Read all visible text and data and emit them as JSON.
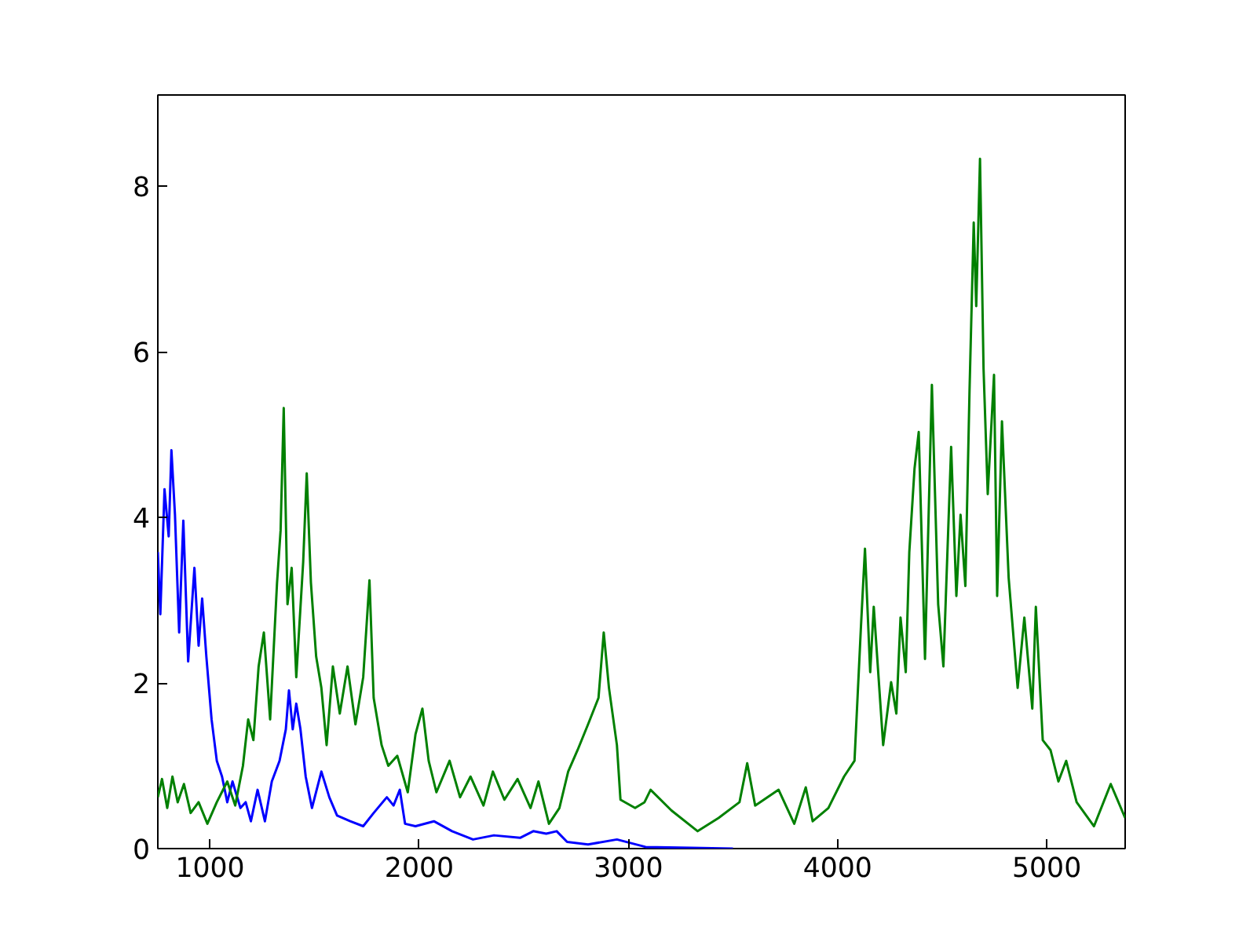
{
  "chart_data": {
    "type": "line",
    "xlim": [
      750,
      5375
    ],
    "ylim": [
      0,
      9.1
    ],
    "xticks": [
      1000,
      2000,
      3000,
      4000,
      5000
    ],
    "yticks": [
      0,
      2,
      4,
      6,
      8
    ],
    "grid": false,
    "line_style": "solid",
    "series": [
      {
        "color": "#0000ff",
        "x": [
          750,
          762,
          782,
          802,
          815,
          832,
          852,
          872,
          895,
          925,
          945,
          962,
          982,
          1007,
          1032,
          1057,
          1082,
          1107,
          1145,
          1170,
          1195,
          1227,
          1262,
          1295,
          1332,
          1362,
          1377,
          1395,
          1412,
          1432,
          1457,
          1487,
          1532,
          1570,
          1607,
          1670,
          1732,
          1782,
          1845,
          1877,
          1907,
          1932,
          1982,
          2070,
          2157,
          2257,
          2357,
          2482,
          2545,
          2607,
          2657,
          2707,
          2807,
          2945,
          3082,
          3300,
          3500
        ],
        "values": [
          3.58,
          2.83,
          4.34,
          3.77,
          4.81,
          4.03,
          2.61,
          3.96,
          2.26,
          3.39,
          2.45,
          3.02,
          2.32,
          1.56,
          1.06,
          0.87,
          0.56,
          0.81,
          0.49,
          0.56,
          0.33,
          0.71,
          0.33,
          0.81,
          1.06,
          1.44,
          1.91,
          1.44,
          1.75,
          1.44,
          0.87,
          0.49,
          0.93,
          0.62,
          0.4,
          0.33,
          0.27,
          0.43,
          0.62,
          0.52,
          0.71,
          0.3,
          0.27,
          0.33,
          0.21,
          0.11,
          0.16,
          0.13,
          0.21,
          0.18,
          0.21,
          0.08,
          0.05,
          0.11,
          0.02,
          0.01,
          0.0
        ]
      },
      {
        "color": "#008000",
        "x": [
          750,
          770,
          795,
          820,
          845,
          875,
          907,
          945,
          987,
          1032,
          1082,
          1120,
          1157,
          1182,
          1207,
          1232,
          1257,
          1287,
          1320,
          1337,
          1352,
          1370,
          1390,
          1412,
          1445,
          1462,
          1482,
          1507,
          1532,
          1557,
          1587,
          1620,
          1657,
          1695,
          1732,
          1762,
          1782,
          1820,
          1852,
          1895,
          1945,
          1982,
          2015,
          2045,
          2082,
          2145,
          2195,
          2245,
          2307,
          2352,
          2407,
          2470,
          2532,
          2570,
          2620,
          2670,
          2712,
          2757,
          2807,
          2857,
          2882,
          2907,
          2945,
          2962,
          3032,
          3077,
          3106,
          3206,
          3331,
          3431,
          3531,
          3568,
          3606,
          3718,
          3793,
          3848,
          3881,
          3956,
          4031,
          4081,
          4111,
          4131,
          4156,
          4173,
          4218,
          4256,
          4281,
          4301,
          4326,
          4343,
          4368,
          4388,
          4418,
          4451,
          4481,
          4506,
          4543,
          4568,
          4588,
          4611,
          4631,
          4651,
          4663,
          4681,
          4698,
          4718,
          4748,
          4763,
          4786,
          4818,
          4861,
          4893,
          4931,
          4948,
          4981,
          5018,
          5056,
          5093,
          5143,
          5226,
          5306,
          5375
        ],
        "values": [
          0.62,
          0.84,
          0.49,
          0.87,
          0.56,
          0.78,
          0.43,
          0.56,
          0.3,
          0.56,
          0.81,
          0.52,
          1.0,
          1.56,
          1.31,
          2.2,
          2.61,
          1.56,
          3.21,
          3.84,
          5.32,
          2.95,
          3.39,
          2.07,
          3.46,
          4.53,
          3.21,
          2.32,
          1.94,
          1.25,
          2.2,
          1.63,
          2.2,
          1.5,
          2.07,
          3.24,
          1.82,
          1.25,
          1.0,
          1.12,
          0.68,
          1.38,
          1.69,
          1.06,
          0.68,
          1.06,
          0.62,
          0.87,
          0.52,
          0.93,
          0.59,
          0.84,
          0.49,
          0.81,
          0.3,
          0.49,
          0.93,
          1.19,
          1.5,
          1.82,
          2.61,
          1.94,
          1.25,
          0.59,
          0.49,
          0.56,
          0.71,
          0.46,
          0.21,
          0.37,
          0.56,
          1.03,
          0.52,
          0.71,
          0.3,
          0.74,
          0.33,
          0.49,
          0.87,
          1.06,
          2.64,
          3.62,
          2.13,
          2.92,
          1.25,
          2.01,
          1.63,
          2.79,
          2.13,
          3.58,
          4.59,
          5.03,
          2.29,
          5.6,
          2.95,
          2.2,
          4.85,
          3.05,
          4.03,
          3.17,
          5.54,
          7.56,
          6.55,
          8.33,
          5.79,
          4.28,
          5.72,
          3.05,
          5.16,
          3.27,
          1.94,
          2.79,
          1.69,
          2.92,
          1.31,
          1.19,
          0.81,
          1.06,
          0.56,
          0.27,
          0.78,
          0.37
        ]
      }
    ]
  }
}
